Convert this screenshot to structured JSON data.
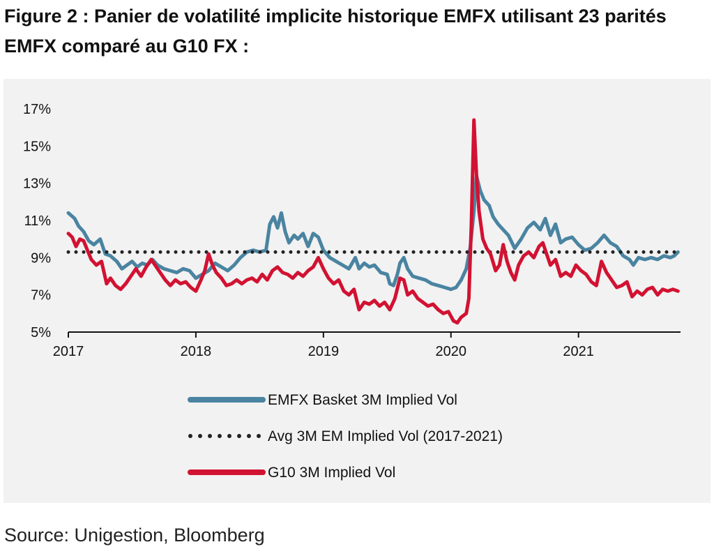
{
  "title": "Figure 2 : Panier de volatilité implicite historique EMFX utilisant 23 parités EMFX comparé au G10 FX :",
  "source": "Source: Unigestion, Bloomberg",
  "chart_data": {
    "type": "line",
    "title": "",
    "xlabel": "",
    "ylabel": "",
    "x_ticks": [
      "2017",
      "2018",
      "2019",
      "2020",
      "2021"
    ],
    "y_ticks": [
      "5%",
      "7%",
      "9%",
      "11%",
      "13%",
      "15%",
      "17%"
    ],
    "xlim": [
      2017.0,
      2021.8
    ],
    "ylim": [
      5,
      17
    ],
    "grid": false,
    "legend_position": "bottom",
    "series": [
      {
        "name": "EMFX Basket 3M Implied Vol",
        "color": "#4a84a1",
        "style": "solid",
        "points": [
          [
            2017.0,
            11.4
          ],
          [
            2017.05,
            11.1
          ],
          [
            2017.08,
            10.7
          ],
          [
            2017.12,
            10.4
          ],
          [
            2017.16,
            9.9
          ],
          [
            2017.2,
            9.7
          ],
          [
            2017.25,
            10.0
          ],
          [
            2017.29,
            9.2
          ],
          [
            2017.33,
            9.1
          ],
          [
            2017.38,
            8.8
          ],
          [
            2017.42,
            8.4
          ],
          [
            2017.46,
            8.6
          ],
          [
            2017.5,
            8.8
          ],
          [
            2017.54,
            8.5
          ],
          [
            2017.58,
            8.7
          ],
          [
            2017.62,
            8.6
          ],
          [
            2017.66,
            8.9
          ],
          [
            2017.7,
            8.6
          ],
          [
            2017.75,
            8.4
          ],
          [
            2017.8,
            8.3
          ],
          [
            2017.85,
            8.2
          ],
          [
            2017.9,
            8.4
          ],
          [
            2017.95,
            8.3
          ],
          [
            2018.0,
            7.9
          ],
          [
            2018.05,
            8.1
          ],
          [
            2018.1,
            8.3
          ],
          [
            2018.15,
            8.7
          ],
          [
            2018.2,
            8.5
          ],
          [
            2018.25,
            8.3
          ],
          [
            2018.3,
            8.6
          ],
          [
            2018.35,
            9.0
          ],
          [
            2018.4,
            9.3
          ],
          [
            2018.45,
            9.4
          ],
          [
            2018.5,
            9.3
          ],
          [
            2018.55,
            9.4
          ],
          [
            2018.58,
            10.8
          ],
          [
            2018.61,
            11.2
          ],
          [
            2018.64,
            10.6
          ],
          [
            2018.67,
            11.4
          ],
          [
            2018.7,
            10.4
          ],
          [
            2018.73,
            9.8
          ],
          [
            2018.77,
            10.2
          ],
          [
            2018.8,
            10.0
          ],
          [
            2018.84,
            10.3
          ],
          [
            2018.88,
            9.6
          ],
          [
            2018.92,
            10.3
          ],
          [
            2018.96,
            10.1
          ],
          [
            2019.0,
            9.4
          ],
          [
            2019.05,
            9.0
          ],
          [
            2019.1,
            8.8
          ],
          [
            2019.15,
            8.6
          ],
          [
            2019.2,
            8.4
          ],
          [
            2019.25,
            9.0
          ],
          [
            2019.28,
            8.4
          ],
          [
            2019.32,
            8.7
          ],
          [
            2019.36,
            8.5
          ],
          [
            2019.4,
            8.6
          ],
          [
            2019.45,
            8.2
          ],
          [
            2019.5,
            8.1
          ],
          [
            2019.52,
            7.6
          ],
          [
            2019.55,
            7.5
          ],
          [
            2019.58,
            8.1
          ],
          [
            2019.6,
            8.7
          ],
          [
            2019.63,
            9.0
          ],
          [
            2019.66,
            8.4
          ],
          [
            2019.7,
            8.0
          ],
          [
            2019.75,
            7.9
          ],
          [
            2019.8,
            7.8
          ],
          [
            2019.85,
            7.6
          ],
          [
            2019.9,
            7.5
          ],
          [
            2019.95,
            7.4
          ],
          [
            2020.0,
            7.3
          ],
          [
            2020.04,
            7.4
          ],
          [
            2020.08,
            7.8
          ],
          [
            2020.12,
            8.4
          ],
          [
            2020.15,
            9.5
          ],
          [
            2020.18,
            11.5
          ],
          [
            2020.2,
            13.4
          ],
          [
            2020.23,
            12.6
          ],
          [
            2020.26,
            12.1
          ],
          [
            2020.3,
            11.8
          ],
          [
            2020.33,
            11.2
          ],
          [
            2020.37,
            10.8
          ],
          [
            2020.41,
            10.5
          ],
          [
            2020.45,
            10.2
          ],
          [
            2020.5,
            9.5
          ],
          [
            2020.55,
            10.0
          ],
          [
            2020.6,
            10.6
          ],
          [
            2020.65,
            10.9
          ],
          [
            2020.7,
            10.5
          ],
          [
            2020.74,
            11.1
          ],
          [
            2020.78,
            10.2
          ],
          [
            2020.82,
            10.8
          ],
          [
            2020.86,
            9.8
          ],
          [
            2020.9,
            10.0
          ],
          [
            2020.95,
            10.1
          ],
          [
            2021.0,
            9.7
          ],
          [
            2021.05,
            9.4
          ],
          [
            2021.1,
            9.5
          ],
          [
            2021.15,
            9.8
          ],
          [
            2021.2,
            10.2
          ],
          [
            2021.25,
            9.8
          ],
          [
            2021.3,
            9.6
          ],
          [
            2021.35,
            9.1
          ],
          [
            2021.4,
            8.9
          ],
          [
            2021.43,
            8.6
          ],
          [
            2021.47,
            9.0
          ],
          [
            2021.52,
            8.9
          ],
          [
            2021.57,
            9.0
          ],
          [
            2021.62,
            8.9
          ],
          [
            2021.67,
            9.1
          ],
          [
            2021.72,
            9.0
          ],
          [
            2021.75,
            9.1
          ],
          [
            2021.78,
            9.3
          ]
        ]
      },
      {
        "name": "Avg 3M EM Implied Vol (2017-2021)",
        "color": "#222222",
        "style": "dotted",
        "points": [
          [
            2017.0,
            9.3
          ],
          [
            2021.8,
            9.3
          ]
        ]
      },
      {
        "name": "G10 3M Implied Vol",
        "color": "#d21232",
        "style": "solid",
        "points": [
          [
            2017.0,
            10.3
          ],
          [
            2017.03,
            10.1
          ],
          [
            2017.06,
            9.6
          ],
          [
            2017.09,
            10.0
          ],
          [
            2017.12,
            9.9
          ],
          [
            2017.15,
            9.4
          ],
          [
            2017.18,
            8.9
          ],
          [
            2017.22,
            8.6
          ],
          [
            2017.26,
            8.8
          ],
          [
            2017.3,
            7.6
          ],
          [
            2017.33,
            7.9
          ],
          [
            2017.37,
            7.5
          ],
          [
            2017.41,
            7.3
          ],
          [
            2017.45,
            7.6
          ],
          [
            2017.49,
            8.0
          ],
          [
            2017.53,
            8.4
          ],
          [
            2017.57,
            8.0
          ],
          [
            2017.61,
            8.5
          ],
          [
            2017.65,
            8.9
          ],
          [
            2017.68,
            8.6
          ],
          [
            2017.72,
            8.2
          ],
          [
            2017.76,
            7.8
          ],
          [
            2017.8,
            7.5
          ],
          [
            2017.84,
            7.8
          ],
          [
            2017.88,
            7.6
          ],
          [
            2017.92,
            7.7
          ],
          [
            2017.96,
            7.4
          ],
          [
            2018.0,
            7.2
          ],
          [
            2018.04,
            7.8
          ],
          [
            2018.07,
            8.3
          ],
          [
            2018.1,
            9.2
          ],
          [
            2018.13,
            8.6
          ],
          [
            2018.16,
            8.2
          ],
          [
            2018.2,
            7.9
          ],
          [
            2018.24,
            7.5
          ],
          [
            2018.28,
            7.6
          ],
          [
            2018.32,
            7.8
          ],
          [
            2018.36,
            7.6
          ],
          [
            2018.4,
            7.8
          ],
          [
            2018.44,
            7.9
          ],
          [
            2018.48,
            7.7
          ],
          [
            2018.52,
            8.1
          ],
          [
            2018.56,
            7.8
          ],
          [
            2018.6,
            8.3
          ],
          [
            2018.64,
            8.5
          ],
          [
            2018.68,
            8.2
          ],
          [
            2018.72,
            8.1
          ],
          [
            2018.76,
            7.9
          ],
          [
            2018.8,
            8.2
          ],
          [
            2018.84,
            8.0
          ],
          [
            2018.88,
            8.3
          ],
          [
            2018.92,
            8.5
          ],
          [
            2018.96,
            9.0
          ],
          [
            2019.0,
            8.4
          ],
          [
            2019.04,
            7.9
          ],
          [
            2019.08,
            7.6
          ],
          [
            2019.12,
            7.8
          ],
          [
            2019.16,
            7.2
          ],
          [
            2019.2,
            7.0
          ],
          [
            2019.24,
            7.3
          ],
          [
            2019.28,
            6.2
          ],
          [
            2019.32,
            6.6
          ],
          [
            2019.36,
            6.5
          ],
          [
            2019.4,
            6.7
          ],
          [
            2019.44,
            6.4
          ],
          [
            2019.48,
            6.6
          ],
          [
            2019.52,
            6.2
          ],
          [
            2019.56,
            6.8
          ],
          [
            2019.6,
            7.9
          ],
          [
            2019.63,
            7.8
          ],
          [
            2019.66,
            7.0
          ],
          [
            2019.7,
            7.2
          ],
          [
            2019.74,
            6.8
          ],
          [
            2019.78,
            6.6
          ],
          [
            2019.82,
            6.4
          ],
          [
            2019.86,
            6.5
          ],
          [
            2019.9,
            6.2
          ],
          [
            2019.94,
            6.0
          ],
          [
            2019.98,
            6.1
          ],
          [
            2020.02,
            5.6
          ],
          [
            2020.05,
            5.5
          ],
          [
            2020.08,
            5.8
          ],
          [
            2020.12,
            6.0
          ],
          [
            2020.14,
            6.8
          ],
          [
            2020.16,
            10.8
          ],
          [
            2020.18,
            16.4
          ],
          [
            2020.2,
            13.5
          ],
          [
            2020.22,
            11.5
          ],
          [
            2020.25,
            10.0
          ],
          [
            2020.28,
            9.5
          ],
          [
            2020.31,
            9.2
          ],
          [
            2020.35,
            8.3
          ],
          [
            2020.38,
            8.6
          ],
          [
            2020.41,
            9.7
          ],
          [
            2020.44,
            8.8
          ],
          [
            2020.47,
            8.2
          ],
          [
            2020.5,
            7.8
          ],
          [
            2020.53,
            8.6
          ],
          [
            2020.57,
            9.1
          ],
          [
            2020.61,
            9.3
          ],
          [
            2020.65,
            9.0
          ],
          [
            2020.69,
            9.6
          ],
          [
            2020.72,
            9.8
          ],
          [
            2020.75,
            9.2
          ],
          [
            2020.78,
            8.6
          ],
          [
            2020.82,
            8.9
          ],
          [
            2020.86,
            8.0
          ],
          [
            2020.9,
            8.2
          ],
          [
            2020.94,
            8.0
          ],
          [
            2020.98,
            8.6
          ],
          [
            2021.02,
            8.3
          ],
          [
            2021.06,
            8.1
          ],
          [
            2021.1,
            7.7
          ],
          [
            2021.14,
            7.5
          ],
          [
            2021.18,
            8.8
          ],
          [
            2021.22,
            8.2
          ],
          [
            2021.26,
            7.8
          ],
          [
            2021.3,
            7.4
          ],
          [
            2021.34,
            7.5
          ],
          [
            2021.38,
            7.7
          ],
          [
            2021.42,
            6.9
          ],
          [
            2021.46,
            7.2
          ],
          [
            2021.5,
            7.0
          ],
          [
            2021.54,
            7.3
          ],
          [
            2021.58,
            7.4
          ],
          [
            2021.62,
            7.0
          ],
          [
            2021.66,
            7.3
          ],
          [
            2021.7,
            7.2
          ],
          [
            2021.74,
            7.3
          ],
          [
            2021.78,
            7.2
          ]
        ]
      }
    ]
  }
}
